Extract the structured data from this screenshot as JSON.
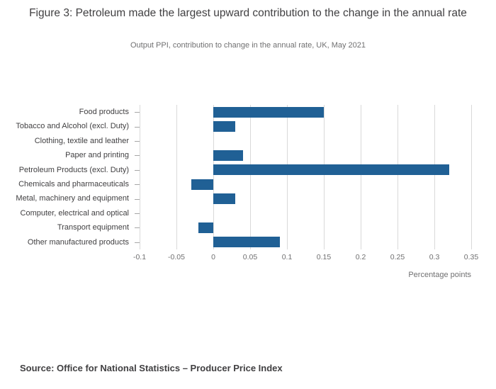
{
  "title": "Figure 3: Petroleum made the largest upward contribution to the change in the annual rate",
  "subtitle": "Output PPI, contribution to change in the annual rate, UK, May 2021",
  "source": "Source: Office for National Statistics – Producer Price Index",
  "colors": {
    "bar": "#206095",
    "gridline": "#d9d9d9",
    "text_dark": "#414042",
    "text_muted": "#707071"
  },
  "chart_data": {
    "type": "bar",
    "orientation": "horizontal",
    "title": "Figure 3: Petroleum made the largest upward contribution to the change in the annual rate",
    "subtitle": "Output PPI, contribution to change in the annual rate, UK, May 2021",
    "categories": [
      "Food products",
      "Tobacco and Alcohol (excl. Duty)",
      "Clothing, textile and leather",
      "Paper and printing",
      "Petroleum Products (excl. Duty)",
      "Chemicals and pharmaceuticals",
      "Metal, machinery and equipment",
      "Computer, electrical and optical",
      "Transport equipment",
      "Other manufactured products"
    ],
    "values": [
      0.15,
      0.03,
      0,
      0.04,
      0.32,
      -0.03,
      0.03,
      0,
      -0.02,
      0.09
    ],
    "xlabel": "Percentage points",
    "ylabel": "",
    "xlim": [
      -0.1,
      0.35
    ],
    "xticks": [
      -0.1,
      -0.05,
      0,
      0.05,
      0.1,
      0.15,
      0.2,
      0.25,
      0.3,
      0.35
    ],
    "xtick_labels": [
      "-0.1",
      "-0.05",
      "0",
      "0.05",
      "0.1",
      "0.15",
      "0.2",
      "0.25",
      "0.3",
      "0.35"
    ],
    "grid": true,
    "legend": "none"
  }
}
